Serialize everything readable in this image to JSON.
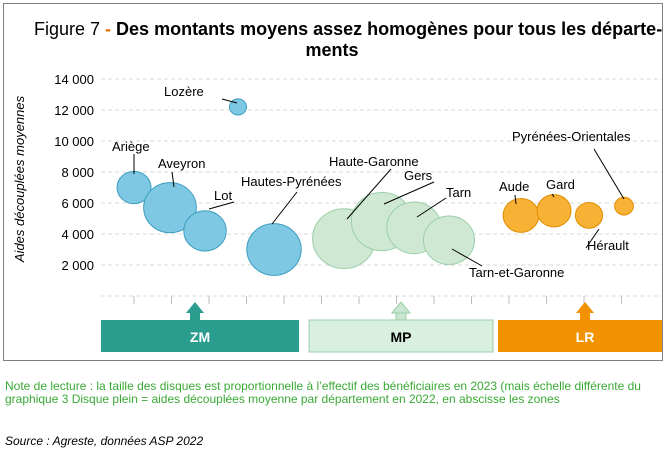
{
  "figure": {
    "prefix": "Figure 7",
    "separator": " - ",
    "title_line1": "Des montants moyens assez homogènes pour tous les départe-",
    "title_line2": "ments"
  },
  "chart_data": {
    "type": "scatter",
    "title": "Figure 7 - Des montants moyens assez homogènes pour tous les départements",
    "ylabel": "Aides découplées moyennes",
    "ylim": [
      0,
      14000
    ],
    "yticks": [
      2000,
      4000,
      6000,
      8000,
      10000,
      12000,
      14000
    ],
    "ytick_labels": [
      "2 000",
      "4 000",
      "6 000",
      "8 000",
      "10 000",
      "12 000",
      "14 000"
    ],
    "grid": "horizontal",
    "points": [
      {
        "label": "Ariège",
        "x": 1,
        "y": 7000,
        "zone": "ZM",
        "size": 1.0
      },
      {
        "label": "Aveyron",
        "x": 2,
        "y": 5700,
        "zone": "ZM",
        "size": 1.55
      },
      {
        "label": "Lot",
        "x": 3,
        "y": 4200,
        "zone": "ZM",
        "size": 1.25
      },
      {
        "label": "Lozère",
        "x": 4,
        "y": 12200,
        "zone": "ZM",
        "size": 0.5
      },
      {
        "label": "Hautes-Pyrénées",
        "x": 5,
        "y": 3000,
        "zone": "ZM",
        "size": 1.6
      },
      {
        "label": "Haute-Garonne",
        "x": 6,
        "y": 3700,
        "zone": "MP",
        "size": 1.85
      },
      {
        "label": "Gers",
        "x": 7,
        "y": 4800,
        "zone": "MP",
        "size": 1.8
      },
      {
        "label": "Tarn",
        "x": 8,
        "y": 4400,
        "zone": "MP",
        "size": 1.6
      },
      {
        "label": "Tarn-et-Garonne",
        "x": 9,
        "y": 3600,
        "zone": "MP",
        "size": 1.5
      },
      {
        "label": "Aude",
        "x": 10,
        "y": 5200,
        "zone": "LR",
        "size": 1.05
      },
      {
        "label": "Gard",
        "x": 11,
        "y": 5500,
        "zone": "LR",
        "size": 1.0
      },
      {
        "label": "Hérault",
        "x": 12,
        "y": 5200,
        "zone": "LR",
        "size": 0.8
      },
      {
        "label": "Pyrénées-Orientales",
        "x": 13,
        "y": 5800,
        "zone": "LR",
        "size": 0.55
      }
    ],
    "zones": [
      {
        "name": "ZM",
        "color": "#2a9d8f"
      },
      {
        "name": "MP",
        "color": "#c8e6d1"
      },
      {
        "name": "LR",
        "color": "#f39200"
      }
    ],
    "colors": {
      "ZM_fill": "#7ec8e3",
      "ZM_stroke": "#3c9ec0",
      "MP_fill": "#cfe8d4",
      "MP_stroke": "#9bcfa8",
      "LR_fill": "#f7b236",
      "LR_stroke": "#e08e00"
    }
  },
  "note": "Note de  lecture : la taille des disques est proportionnelle à l’effectif des bénéficiaires en 2023 (mais échelle différente du graphique 3 Disque plein = aides découplées moyenne par département en 2022, en abscisse les zones",
  "source": "Source : Agreste, données ASP 2022"
}
